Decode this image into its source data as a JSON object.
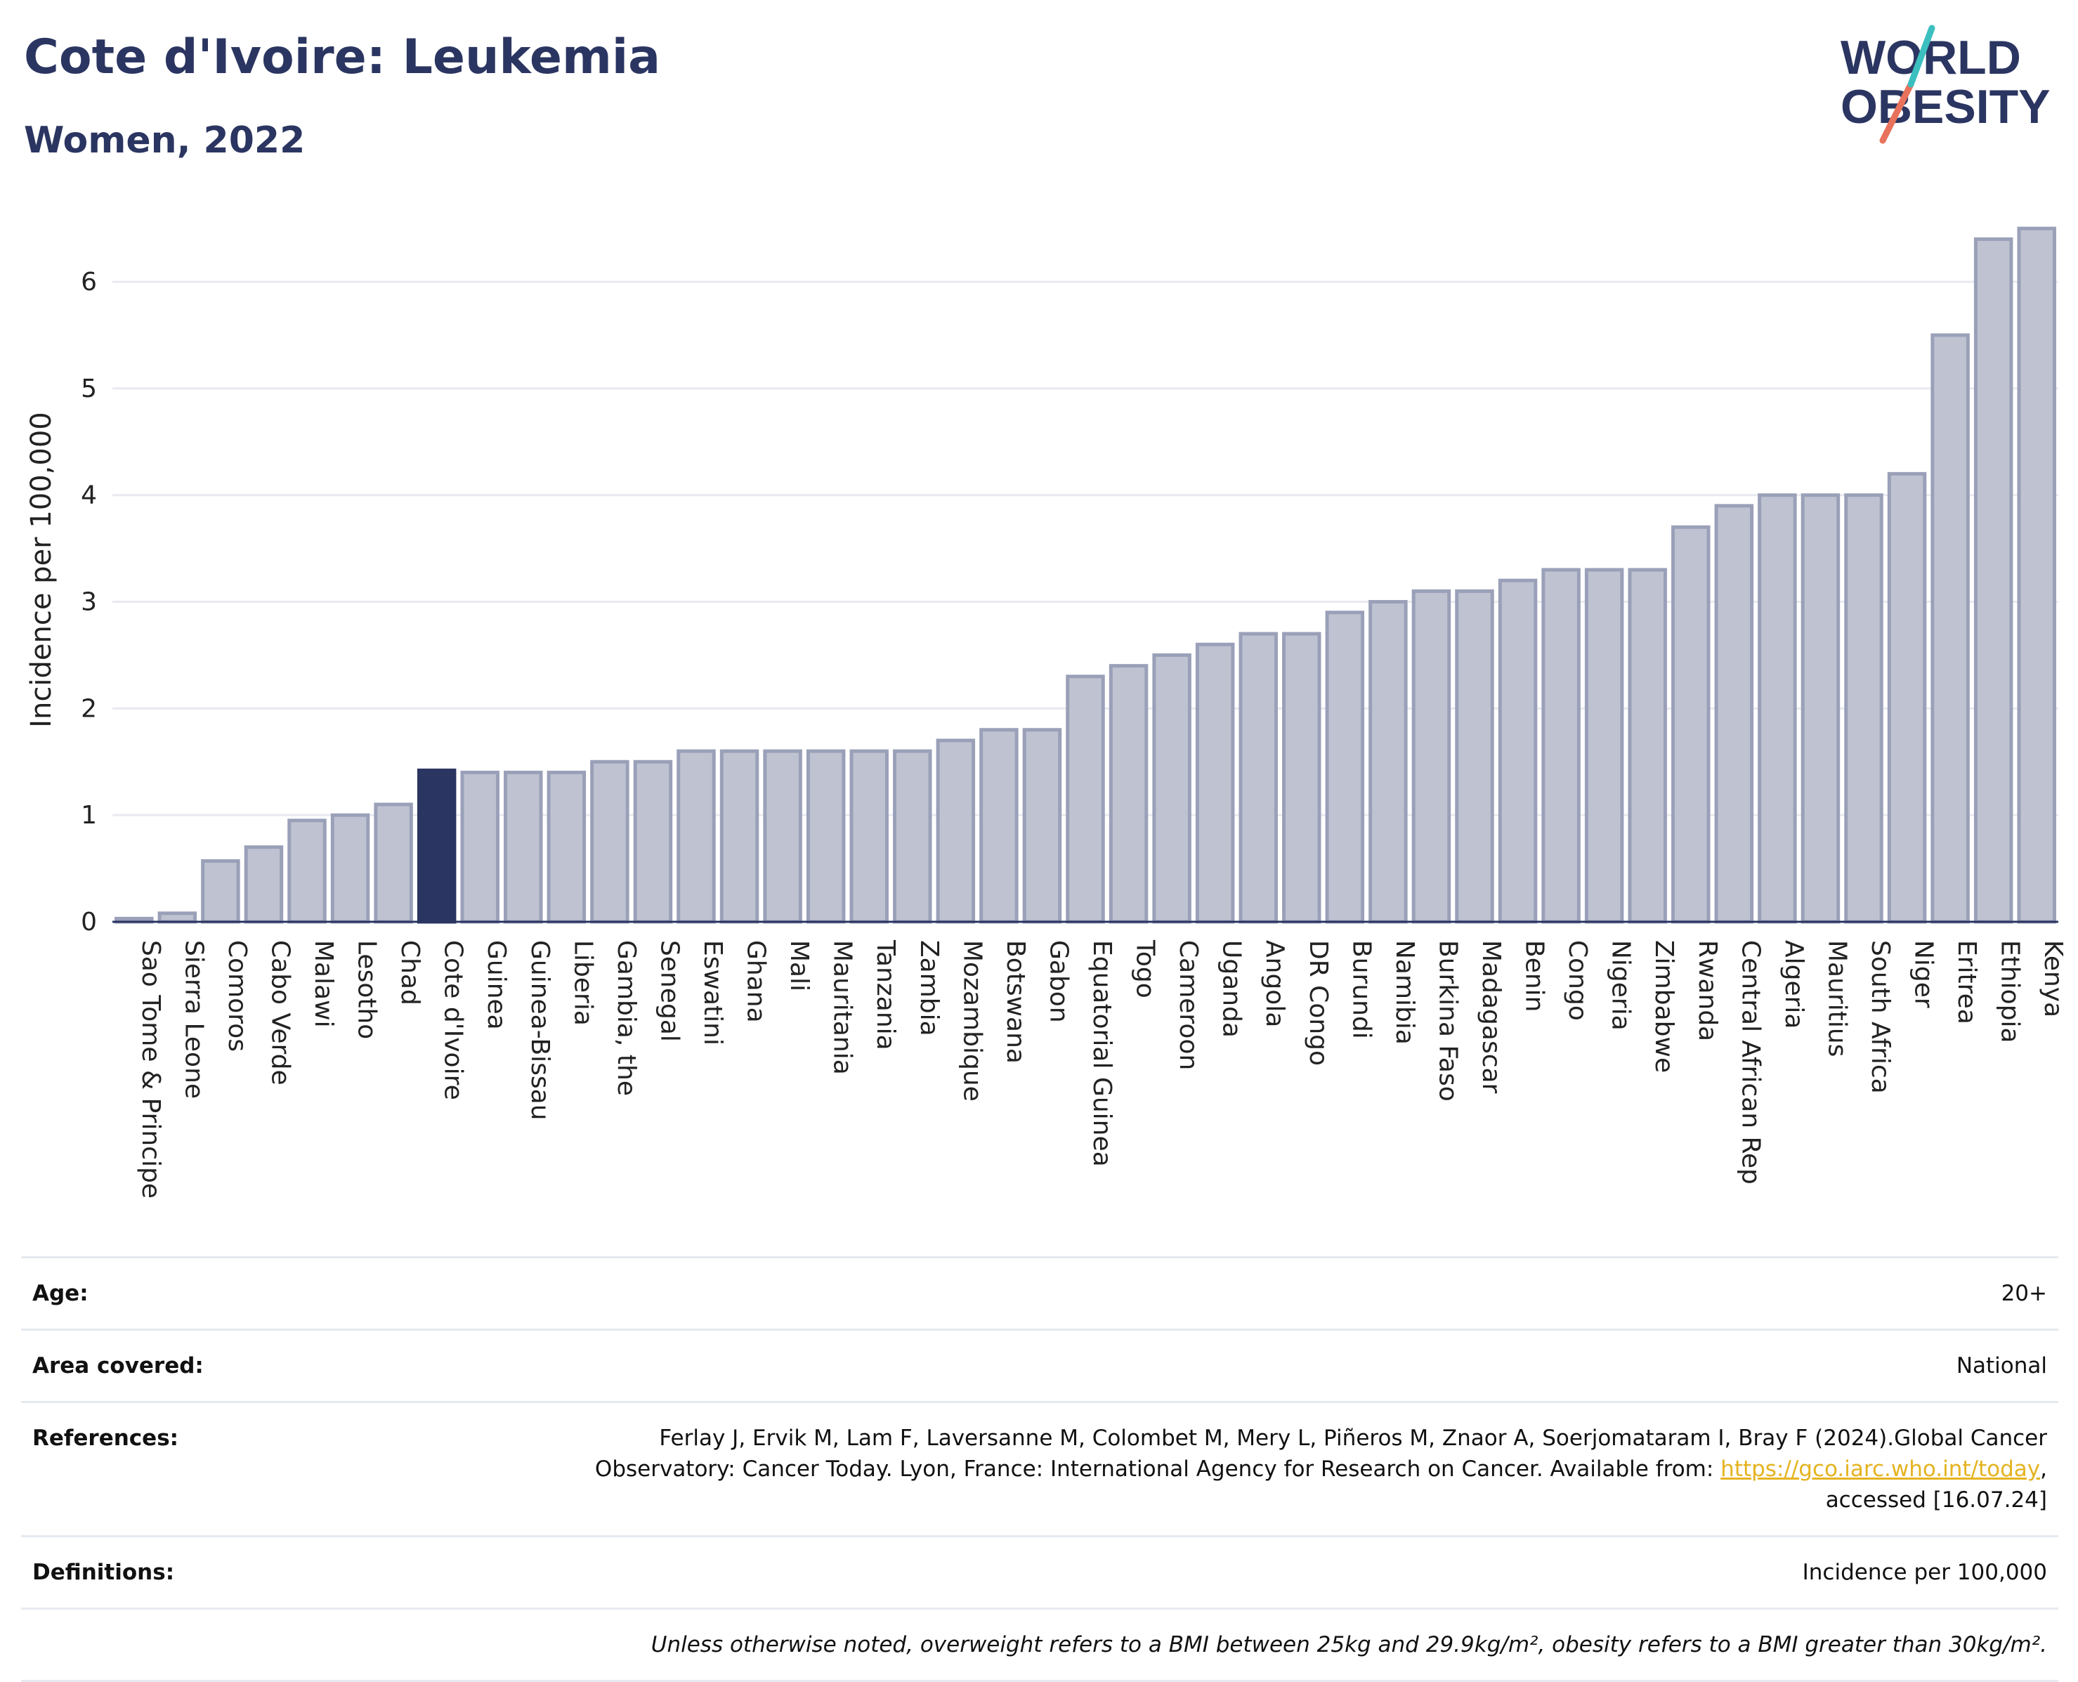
{
  "title": "Cote d'Ivoire: Leukemia",
  "subtitle": "Women, 2022",
  "logo": {
    "line1": "WORLD",
    "line2": "OBESITY"
  },
  "colors": {
    "highlight": "#2b3561",
    "bar": "#bfc3d1",
    "bar_stroke": "#9aa0b8",
    "title": "#2b3561",
    "link": "#e5b320"
  },
  "chart_data": {
    "type": "bar",
    "ylabel": "Incidence per 100,000",
    "ylim": [
      0,
      6.6
    ],
    "yticks": [
      0,
      1,
      2,
      3,
      4,
      5,
      6
    ],
    "highlight": "Cote d'Ivoire",
    "categories": [
      "Sao Tome & Principe",
      "Sierra Leone",
      "Comoros",
      "Cabo Verde",
      "Malawi",
      "Lesotho",
      "Chad",
      "Cote d'Ivoire",
      "Guinea",
      "Guinea-Bissau",
      "Liberia",
      "Gambia, the",
      "Senegal",
      "Eswatini",
      "Ghana",
      "Mali",
      "Mauritania",
      "Tanzania",
      "Zambia",
      "Mozambique",
      "Botswana",
      "Gabon",
      "Equatorial Guinea",
      "Togo",
      "Cameroon",
      "Uganda",
      "Angola",
      "DR Congo",
      "Burundi",
      "Namibia",
      "Burkina Faso",
      "Madagascar",
      "Benin",
      "Congo",
      "Nigeria",
      "Zimbabwe",
      "Rwanda",
      "Central African Rep",
      "Algeria",
      "Mauritius",
      "South Africa",
      "Niger",
      "Eritrea",
      "Ethiopia",
      "Kenya"
    ],
    "values": [
      0.03,
      0.08,
      0.57,
      0.7,
      0.95,
      1.0,
      1.1,
      1.42,
      1.4,
      1.4,
      1.4,
      1.5,
      1.5,
      1.6,
      1.6,
      1.6,
      1.6,
      1.6,
      1.6,
      1.7,
      1.8,
      1.8,
      2.3,
      2.4,
      2.5,
      2.6,
      2.7,
      2.7,
      2.9,
      3.0,
      3.1,
      3.1,
      3.2,
      3.3,
      3.3,
      3.3,
      3.7,
      3.9,
      4.0,
      4.0,
      4.0,
      4.2,
      5.5,
      6.4,
      6.5
    ]
  },
  "info": {
    "age_label": "Age:",
    "age_value": "20+",
    "area_label": "Area covered:",
    "area_value": "National",
    "ref_label": "References:",
    "ref_text1": "Ferlay J, Ervik M, Lam F, Laversanne M, Colombet M, Mery L, Piñeros M, Znaor A, Soerjomataram I, Bray F (2024).Global Cancer Observatory: Cancer Today. Lyon, France: International Agency for Research on Cancer. Available from: ",
    "ref_link": "https://gco.iarc.who.int/today",
    "ref_text2": ", accessed [16.07.24]",
    "def_label": "Definitions:",
    "def_value": "Incidence per 100,000",
    "note": "Unless otherwise noted, overweight refers to a BMI between 25kg and 29.9kg/m², obesity refers to a BMI greater than 30kg/m²."
  }
}
